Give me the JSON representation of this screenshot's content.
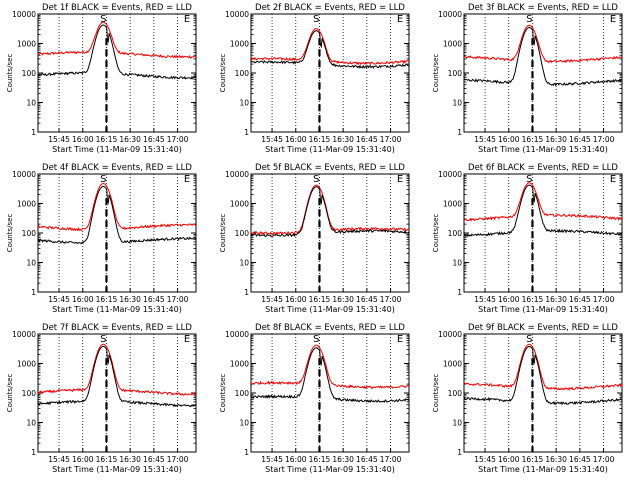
{
  "chart_data": [
    {
      "type": "line",
      "title": "Det 1f BLACK = Events, RED = LLD",
      "xlabel": "Start Time (11-Mar-09 15:31:40)",
      "ylabel": "Counts/sec",
      "ylog": true,
      "ylim": [
        1,
        10000
      ],
      "yticks": [
        "1",
        "10",
        "100",
        "1000",
        "10000"
      ],
      "xticks": [
        "15:45",
        "16:00",
        "16:15",
        "16:30",
        "16:45",
        "17:00"
      ],
      "markers": [
        "S",
        "E"
      ],
      "series": [
        {
          "color": "#ff0000",
          "base": 430,
          "peak": 5200
        },
        {
          "color": "#000000",
          "base": 85,
          "peak": 4200
        }
      ]
    },
    {
      "type": "line",
      "title": "Det 2f BLACK = Events, RED = LLD",
      "xlabel": "Start Time (11-Mar-09 15:31:40)",
      "ylabel": "Counts/sec",
      "ylog": true,
      "ylim": [
        1,
        10000
      ],
      "yticks": [
        "1",
        "10",
        "100",
        "1000",
        "10000"
      ],
      "xticks": [
        "15:45",
        "16:00",
        "16:15",
        "16:30",
        "16:45",
        "17:00"
      ],
      "markers": [
        "S",
        "E"
      ],
      "series": [
        {
          "color": "#ff0000",
          "base": 260,
          "peak": 3200
        },
        {
          "color": "#000000",
          "base": 200,
          "peak": 2700
        }
      ]
    },
    {
      "type": "line",
      "title": "Det 3f BLACK = Events, RED = LLD",
      "xlabel": "Start Time (11-Mar-09 15:31:40)",
      "ylabel": "Counts/sec",
      "ylog": true,
      "ylim": [
        1,
        10000
      ],
      "yticks": [
        "1",
        "10",
        "100",
        "1000",
        "10000"
      ],
      "xticks": [
        "15:45",
        "16:00",
        "16:15",
        "16:30",
        "16:45",
        "17:00"
      ],
      "markers": [
        "S",
        "E"
      ],
      "series": [
        {
          "color": "#ff0000",
          "base": 300,
          "peak": 4200
        },
        {
          "color": "#000000",
          "base": 50,
          "peak": 3500
        }
      ]
    },
    {
      "type": "line",
      "title": "Det 4f BLACK = Events, RED = LLD",
      "xlabel": "Start Time (11-Mar-09 15:31:40)",
      "ylabel": "Counts/sec",
      "ylog": true,
      "ylim": [
        1,
        10000
      ],
      "yticks": [
        "1",
        "10",
        "100",
        "1000",
        "10000"
      ],
      "xticks": [
        "15:45",
        "16:00",
        "16:15",
        "16:30",
        "16:45",
        "17:00"
      ],
      "markers": [
        "S",
        "E"
      ],
      "series": [
        {
          "color": "#ff0000",
          "base": 160,
          "peak": 4800
        },
        {
          "color": "#000000",
          "base": 55,
          "peak": 3800
        }
      ]
    },
    {
      "type": "line",
      "title": "Det 5f BLACK = Events, RED = LLD",
      "xlabel": "Start Time (11-Mar-09 15:31:40)",
      "ylabel": "Counts/sec",
      "ylog": true,
      "ylim": [
        1,
        10000
      ],
      "yticks": [
        "1",
        "10",
        "100",
        "1000",
        "10000"
      ],
      "xticks": [
        "15:45",
        "16:00",
        "16:15",
        "16:30",
        "16:45",
        "17:00"
      ],
      "markers": [
        "S",
        "E"
      ],
      "series": [
        {
          "color": "#ff0000",
          "base": 120,
          "peak": 4200
        },
        {
          "color": "#000000",
          "base": 100,
          "peak": 3700
        }
      ]
    },
    {
      "type": "line",
      "title": "Det 6f BLACK = Events, RED = LLD",
      "xlabel": "Start Time (11-Mar-09 15:31:40)",
      "ylabel": "Counts/sec",
      "ylog": true,
      "ylim": [
        1,
        10000
      ],
      "yticks": [
        "1",
        "10",
        "100",
        "1000",
        "10000"
      ],
      "xticks": [
        "15:45",
        "16:00",
        "16:15",
        "16:30",
        "16:45",
        "17:00"
      ],
      "markers": [
        "S",
        "E"
      ],
      "series": [
        {
          "color": "#ff0000",
          "base": 340,
          "peak": 5000
        },
        {
          "color": "#000000",
          "base": 100,
          "peak": 4200
        }
      ]
    },
    {
      "type": "line",
      "title": "Det 7f BLACK = Events, RED = LLD",
      "xlabel": "Start Time (11-Mar-09 15:31:40)",
      "ylabel": "Counts/sec",
      "ylog": true,
      "ylim": [
        1,
        10000
      ],
      "yticks": [
        "1",
        "10",
        "100",
        "1000",
        "10000"
      ],
      "xticks": [
        "15:45",
        "16:00",
        "16:15",
        "16:30",
        "16:45",
        "17:00"
      ],
      "markers": [
        "S",
        "E"
      ],
      "series": [
        {
          "color": "#ff0000",
          "base": 110,
          "peak": 4500
        },
        {
          "color": "#000000",
          "base": 45,
          "peak": 3800
        }
      ]
    },
    {
      "type": "line",
      "title": "Det 8f BLACK = Events, RED = LLD",
      "xlabel": "Start Time (11-Mar-09 15:31:40)",
      "ylabel": "Counts/sec",
      "ylog": true,
      "ylim": [
        1,
        10000
      ],
      "yticks": [
        "1",
        "10",
        "100",
        "1000",
        "10000"
      ],
      "xticks": [
        "15:45",
        "16:00",
        "16:15",
        "16:30",
        "16:45",
        "17:00"
      ],
      "markers": [
        "S",
        "E"
      ],
      "series": [
        {
          "color": "#ff0000",
          "base": 190,
          "peak": 4200
        },
        {
          "color": "#000000",
          "base": 65,
          "peak": 3400
        }
      ]
    },
    {
      "type": "line",
      "title": "Det 9f BLACK = Events, RED = LLD",
      "xlabel": "Start Time (11-Mar-09 15:31:40)",
      "ylabel": "Counts/sec",
      "ylog": true,
      "ylim": [
        1,
        10000
      ],
      "yticks": [
        "1",
        "10",
        "100",
        "1000",
        "10000"
      ],
      "xticks": [
        "15:45",
        "16:00",
        "16:15",
        "16:30",
        "16:45",
        "17:00"
      ],
      "markers": [
        "S",
        "E"
      ],
      "series": [
        {
          "color": "#ff0000",
          "base": 170,
          "peak": 4500
        },
        {
          "color": "#000000",
          "base": 55,
          "peak": 3800
        }
      ]
    }
  ]
}
